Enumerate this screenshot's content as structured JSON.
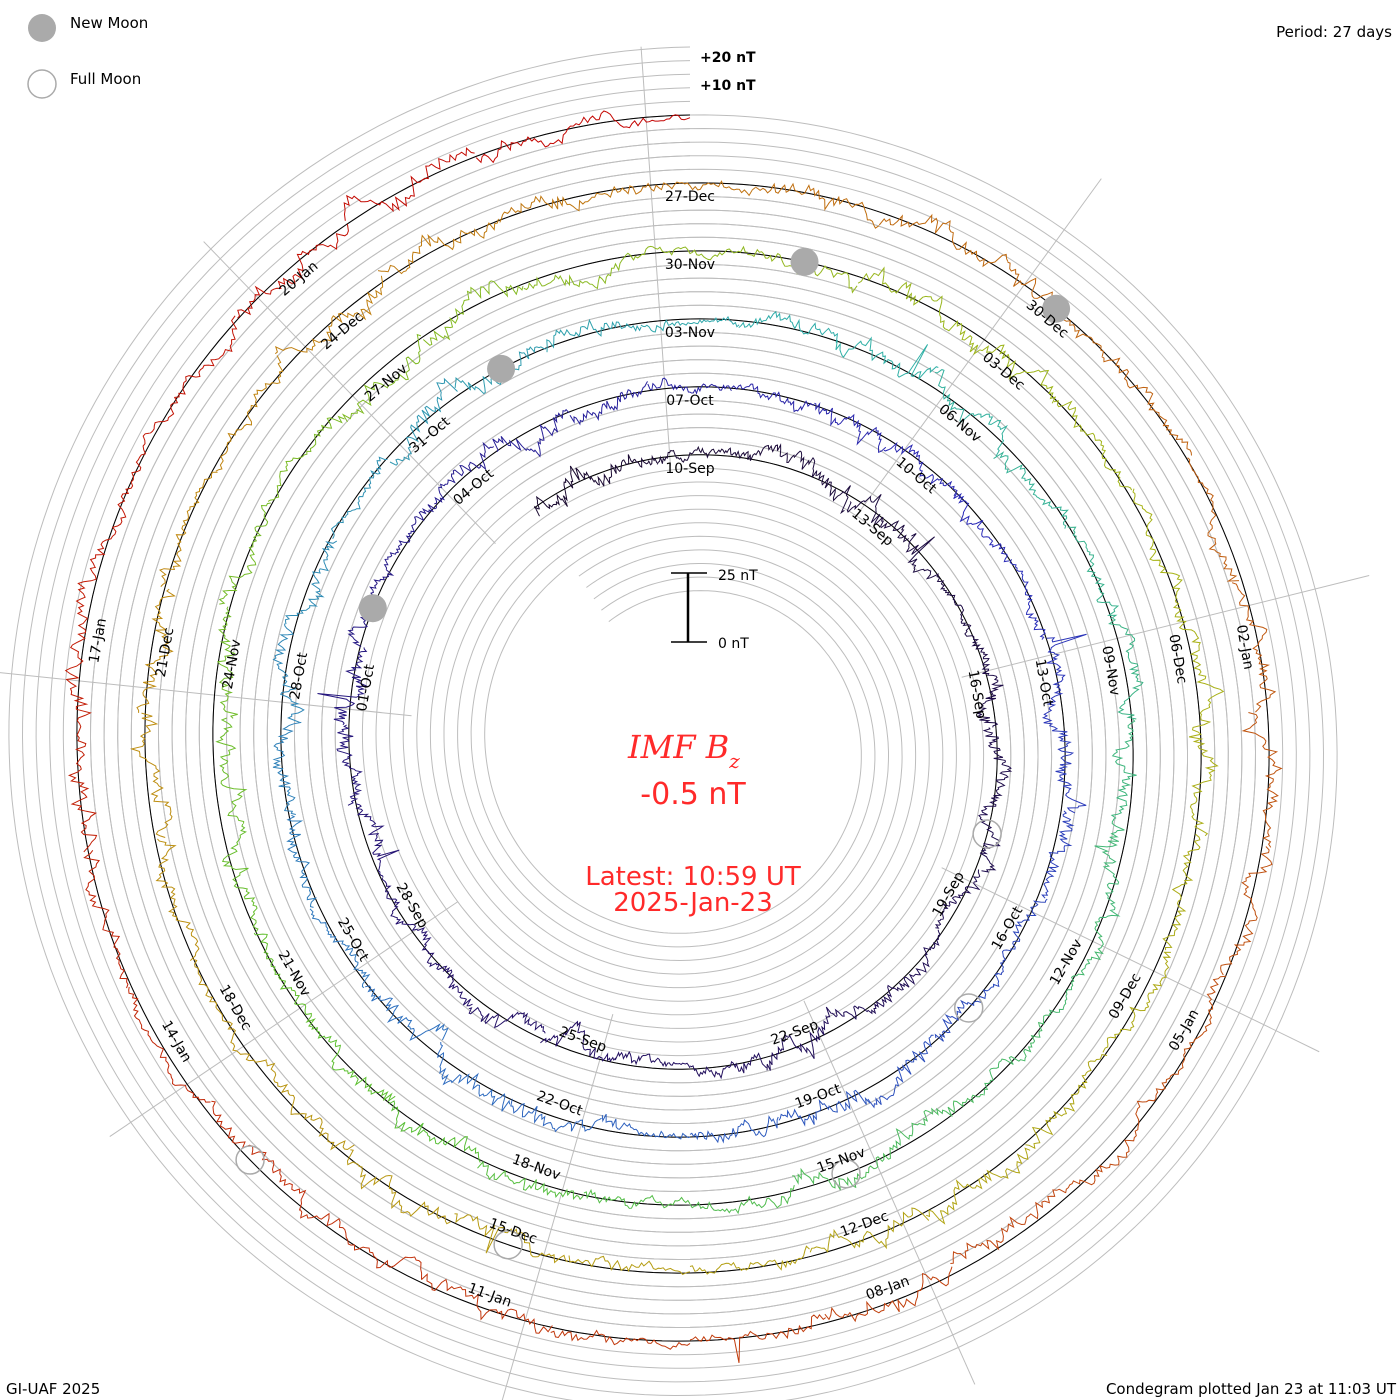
{
  "legend": {
    "new_moon": "New Moon",
    "full_moon": "Full Moon",
    "new_moon_color": "#aaaaaa"
  },
  "period": "Period: 27 days",
  "credit": "GI-UAF 2025",
  "plotted": "Condegram plotted Jan 23 at 11:03 UT",
  "chart_data": {
    "type": "line",
    "subtype": "spiral condegram",
    "title": "IMF B",
    "title_sub": "z",
    "current_value": "-0.5 nT",
    "latest_time": "Latest: 10:59 UT",
    "latest_date": "2025-Jan-23",
    "period_days": 27,
    "range_days_before_latest": [
      137.5,
      0
    ],
    "scale_labels": {
      "top": "25 nT",
      "bottom": "0 nT"
    },
    "scale_nT": 25,
    "offset_labels": [
      "+20 nT",
      "+10 nT"
    ],
    "offset_values_nT": [
      20,
      10
    ],
    "date_labels": [
      "10-Sep",
      "13-Sep",
      "16-Sep",
      "19-Sep",
      "22-Sep",
      "25-Sep",
      "28-Sep",
      "01-Oct",
      "04-Oct",
      "07-Oct",
      "10-Oct",
      "13-Oct",
      "16-Oct",
      "19-Oct",
      "22-Oct",
      "25-Oct",
      "28-Oct",
      "31-Oct",
      "03-Nov",
      "06-Nov",
      "09-Nov",
      "12-Nov",
      "15-Nov",
      "18-Nov",
      "21-Nov",
      "24-Nov",
      "27-Nov",
      "30-Nov",
      "03-Dec",
      "06-Dec",
      "09-Dec",
      "12-Dec",
      "15-Dec",
      "18-Dec",
      "21-Dec",
      "24-Dec",
      "27-Dec",
      "30-Dec",
      "02-Jan",
      "05-Jan",
      "08-Jan",
      "11-Jan",
      "14-Jan",
      "17-Jan",
      "20-Jan"
    ],
    "first_label_days_before_latest": 135,
    "label_step_days": 3,
    "new_moons_days_before_latest": [
      113,
      83,
      53,
      24
    ],
    "full_moons_days_before_latest": [
      127,
      98,
      69,
      39,
      10
    ],
    "color_stops": [
      [
        0,
        "#1a0a30"
      ],
      [
        0.14,
        "#24106a"
      ],
      [
        0.24,
        "#2a2ab8"
      ],
      [
        0.33,
        "#2f6ec0"
      ],
      [
        0.42,
        "#2fb0a8"
      ],
      [
        0.53,
        "#5cc030"
      ],
      [
        0.64,
        "#a8b418"
      ],
      [
        0.76,
        "#c08a10"
      ],
      [
        0.86,
        "#c05010"
      ],
      [
        1,
        "#c40000"
      ]
    ]
  }
}
